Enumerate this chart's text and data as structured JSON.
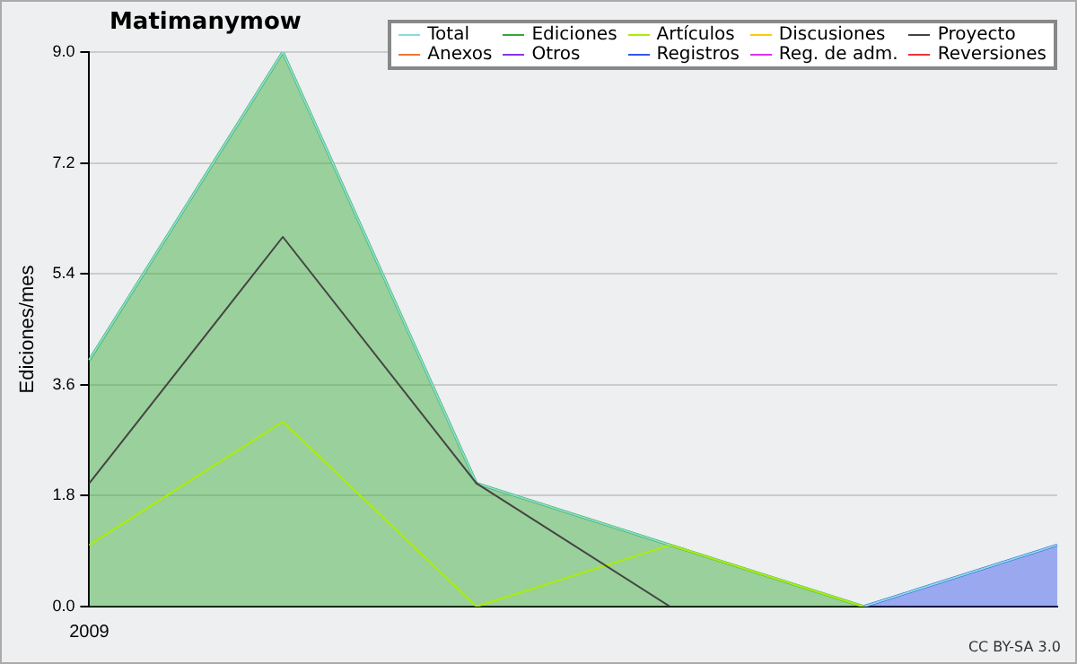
{
  "chart_data": {
    "type": "line",
    "title": "Matimanymow",
    "ylabel": "Ediciones/mes",
    "categories": [
      "2009",
      null,
      null,
      null,
      null,
      null
    ],
    "series": [
      {
        "name": "Total",
        "color": "#88dddd",
        "values": [
          4,
          9,
          2,
          1,
          0,
          1
        ]
      },
      {
        "name": "Ediciones",
        "type": "area",
        "color": "#33aa33",
        "values": [
          4,
          9,
          2,
          1,
          0,
          null
        ]
      },
      {
        "name": "Artículos",
        "color": "#aaee00",
        "values": [
          1,
          3,
          0,
          1,
          0,
          null
        ]
      },
      {
        "name": "Discusiones",
        "color": "#ffcc00",
        "values": [
          null,
          null,
          null,
          null,
          null,
          null
        ]
      },
      {
        "name": "Proyecto",
        "color": "#444444",
        "values": [
          2,
          6,
          2,
          0,
          null,
          null
        ]
      },
      {
        "name": "Anexos",
        "color": "#ee7733",
        "values": [
          null,
          null,
          null,
          null,
          null,
          null
        ]
      },
      {
        "name": "Otros",
        "color": "#8833ee",
        "values": [
          null,
          null,
          null,
          null,
          null,
          null
        ]
      },
      {
        "name": "Registros",
        "type": "area",
        "color": "#3355ee",
        "values": [
          null,
          null,
          null,
          null,
          0,
          1
        ]
      },
      {
        "name": "Reg. de adm.",
        "color": "#dd33ee",
        "values": [
          null,
          null,
          null,
          null,
          null,
          null
        ]
      },
      {
        "name": "Reversiones",
        "color": "#ee3333",
        "values": [
          null,
          null,
          null,
          null,
          null,
          null
        ]
      }
    ],
    "ylim": [
      0,
      9
    ],
    "yticks": [
      {
        "value": 0,
        "label": "0.0"
      },
      {
        "value": 1.8,
        "label": "1.8"
      },
      {
        "value": 3.6,
        "label": "3.6"
      },
      {
        "value": 5.4,
        "label": "5.4"
      },
      {
        "value": 7.2,
        "label": "7.2"
      },
      {
        "value": 9,
        "label": "9.0"
      }
    ],
    "grid": "y",
    "legend": "top right",
    "marker": "none",
    "annotations": [
      "CC BY-SA 3.0"
    ]
  }
}
